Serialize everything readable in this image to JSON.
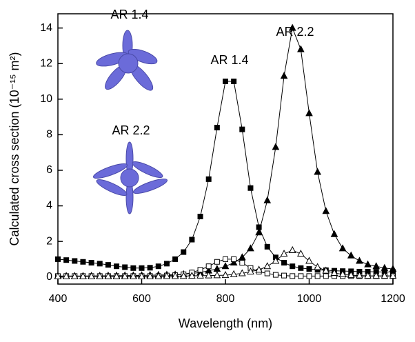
{
  "chart_data": {
    "type": "line",
    "xlabel": "Wavelength (nm)",
    "ylabel": "Calculated cross section (10⁻¹⁵ m²)",
    "annotations": [
      "AR 1.4",
      "AR 2.2",
      "AR 1.4",
      "AR 2.2"
    ],
    "x": [
      400,
      420,
      440,
      460,
      480,
      500,
      520,
      540,
      560,
      580,
      600,
      620,
      640,
      660,
      680,
      700,
      720,
      740,
      760,
      780,
      800,
      820,
      840,
      860,
      880,
      900,
      920,
      940,
      960,
      980,
      1000,
      1020,
      1040,
      1060,
      1080,
      1100,
      1120,
      1140,
      1160,
      1180,
      1200
    ],
    "series": [
      {
        "color": "#000000",
        "marker": "square",
        "filled": true,
        "values": [
          1.0,
          0.95,
          0.9,
          0.85,
          0.8,
          0.75,
          0.68,
          0.6,
          0.55,
          0.5,
          0.5,
          0.52,
          0.6,
          0.75,
          1.0,
          1.4,
          2.1,
          3.4,
          5.5,
          8.4,
          11.0,
          11.0,
          8.3,
          5.0,
          2.8,
          1.7,
          1.1,
          0.8,
          0.6,
          0.5,
          0.45,
          0.4,
          0.38,
          0.35,
          0.33,
          0.32,
          0.3,
          0.3,
          0.29,
          0.28,
          0.28
        ]
      },
      {
        "color": "#000000",
        "marker": "triangle",
        "filled": true,
        "values": [
          0.05,
          0.05,
          0.05,
          0.05,
          0.06,
          0.06,
          0.07,
          0.07,
          0.08,
          0.08,
          0.09,
          0.1,
          0.11,
          0.12,
          0.13,
          0.15,
          0.2,
          0.25,
          0.35,
          0.45,
          0.6,
          0.8,
          1.1,
          1.6,
          2.5,
          4.3,
          7.3,
          11.3,
          14.0,
          12.8,
          9.2,
          5.9,
          3.7,
          2.4,
          1.6,
          1.2,
          0.9,
          0.7,
          0.6,
          0.5,
          0.45
        ]
      },
      {
        "color": "#000000",
        "marker": "square",
        "filled": false,
        "values": [
          0.05,
          0.05,
          0.05,
          0.05,
          0.05,
          0.05,
          0.05,
          0.05,
          0.05,
          0.05,
          0.05,
          0.05,
          0.05,
          0.08,
          0.1,
          0.15,
          0.25,
          0.4,
          0.6,
          0.85,
          1.0,
          1.0,
          0.8,
          0.5,
          0.3,
          0.2,
          0.12,
          0.08,
          0.05,
          0.05,
          0.05,
          0.05,
          0.05,
          0.05,
          0.05,
          0.05,
          0.05,
          0.05,
          0.05,
          0.05,
          0.05
        ]
      },
      {
        "color": "#000000",
        "marker": "triangle",
        "filled": false,
        "values": [
          0.03,
          0.03,
          0.03,
          0.03,
          0.03,
          0.03,
          0.03,
          0.03,
          0.03,
          0.03,
          0.03,
          0.03,
          0.03,
          0.04,
          0.04,
          0.05,
          0.06,
          0.07,
          0.08,
          0.09,
          0.1,
          0.15,
          0.2,
          0.3,
          0.4,
          0.6,
          0.9,
          1.3,
          1.5,
          1.3,
          0.9,
          0.55,
          0.35,
          0.22,
          0.15,
          0.1,
          0.08,
          0.06,
          0.06,
          0.06,
          0.06
        ]
      }
    ],
    "xlim": [
      400,
      1200
    ],
    "xticks": [
      400,
      600,
      800,
      1000,
      1200
    ],
    "ylim": [
      -0.4,
      14.8
    ],
    "yticks": [
      0,
      2,
      4,
      6,
      8,
      10,
      12,
      14
    ]
  }
}
